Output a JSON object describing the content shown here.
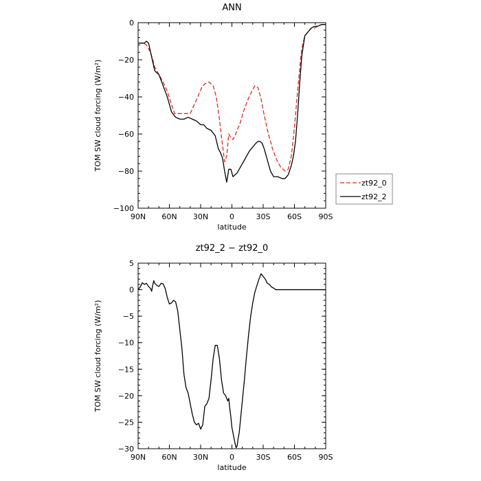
{
  "chart_data": [
    {
      "type": "line",
      "title": "ANN",
      "xlabel": "latitude",
      "ylabel": "TOM SW cloud forcing (W/m²)",
      "xlim": [
        90,
        -90
      ],
      "ylim": [
        -100,
        0
      ],
      "x_ticks": [
        90,
        60,
        30,
        0,
        -30,
        -60,
        -90
      ],
      "x_tick_labels": [
        "90N",
        "60N",
        "30N",
        "0",
        "30S",
        "60S",
        "90S"
      ],
      "y_ticks": [
        0,
        -20,
        -40,
        -60,
        -80,
        -100
      ],
      "y_tick_labels": [
        "0",
        "−20",
        "−40",
        "−60",
        "−80",
        "−100"
      ],
      "legend_position": "right",
      "series": [
        {
          "name": "zt92_0",
          "color": "#e0281e",
          "dash": "dashed",
          "x": [
            90,
            85,
            82,
            78,
            74,
            70,
            66,
            62,
            58,
            55,
            50,
            45,
            40,
            36,
            32,
            29,
            26,
            22,
            18,
            15,
            12,
            9,
            7,
            5,
            3,
            1,
            -1,
            -3,
            -5,
            -8,
            -11,
            -15,
            -19,
            -22,
            -25,
            -28,
            -31,
            -35,
            -39,
            -43,
            -47,
            -51,
            -54,
            -57,
            -59,
            -61,
            -63,
            -65,
            -67,
            -70,
            -73,
            -76,
            -79,
            -82,
            -86,
            -90
          ],
          "y": [
            -11,
            -11,
            -12,
            -16,
            -24,
            -28,
            -32,
            -37,
            -44,
            -49,
            -49,
            -49,
            -49,
            -44,
            -39,
            -35,
            -33,
            -32,
            -34,
            -40,
            -52,
            -66,
            -75,
            -72,
            -60,
            -62,
            -63,
            -61,
            -58,
            -54,
            -48,
            -42,
            -37,
            -34,
            -35,
            -41,
            -50,
            -60,
            -68,
            -74,
            -78,
            -80,
            -79,
            -72,
            -62,
            -50,
            -37,
            -25,
            -14,
            -7,
            -5,
            -3,
            -3,
            -2,
            -1,
            -1
          ]
        },
        {
          "name": "zt92_2",
          "color": "#000000",
          "dash": "solid",
          "x": [
            90,
            87,
            84,
            82,
            80,
            78,
            76,
            74,
            70,
            66,
            62,
            58,
            54,
            50,
            46,
            42,
            38,
            34,
            30,
            27,
            24,
            20,
            16,
            13,
            11,
            9,
            7,
            5,
            3,
            1,
            -1,
            -3,
            -5,
            -8,
            -11,
            -14,
            -17,
            -20,
            -23,
            -25,
            -27,
            -29,
            -31,
            -34,
            -37,
            -40,
            -44,
            -48,
            -51,
            -54,
            -57,
            -59,
            -61,
            -63,
            -65,
            -67,
            -70,
            -73,
            -76,
            -79,
            -82,
            -86,
            -90
          ],
          "y": [
            -11,
            -11,
            -11,
            -10,
            -11,
            -16,
            -21,
            -26,
            -28,
            -34,
            -40,
            -48,
            -51,
            -52,
            -52,
            -51,
            -52,
            -53,
            -55,
            -55,
            -57,
            -58,
            -61,
            -68,
            -70,
            -73,
            -80,
            -86,
            -79,
            -79,
            -83,
            -82,
            -81,
            -78,
            -75,
            -72,
            -69,
            -67,
            -65,
            -64,
            -64,
            -65,
            -68,
            -74,
            -80,
            -83,
            -83,
            -84,
            -84,
            -82,
            -77,
            -72,
            -64,
            -50,
            -33,
            -18,
            -7,
            -5,
            -3,
            -2,
            -2,
            -1,
            -1
          ]
        }
      ]
    },
    {
      "type": "line",
      "title": "zt92_2 − zt92_0",
      "xlabel": "latitude",
      "ylabel": "TOM SW cloud forcing (W/m²)",
      "xlim": [
        90,
        -90
      ],
      "ylim": [
        -30,
        5
      ],
      "x_ticks": [
        90,
        60,
        30,
        0,
        -30,
        -60,
        -90
      ],
      "x_tick_labels": [
        "90N",
        "60N",
        "30N",
        "0",
        "30S",
        "60S",
        "90S"
      ],
      "y_ticks": [
        5,
        0,
        -5,
        -10,
        -15,
        -20,
        -25,
        -30
      ],
      "y_tick_labels": [
        "5",
        "0",
        "−5",
        "−10",
        "−15",
        "−20",
        "−25",
        "−30"
      ],
      "series": [
        {
          "color": "#000000",
          "dash": "solid",
          "x": [
            90,
            88,
            86,
            84,
            82,
            80,
            78,
            77,
            76,
            75,
            74,
            72,
            70,
            68,
            66,
            64,
            62,
            60,
            58,
            56,
            54,
            52,
            50,
            48,
            46,
            44,
            42,
            40,
            38,
            36,
            34,
            32,
            30,
            28,
            26,
            24,
            22,
            20,
            18,
            16,
            14,
            12,
            10,
            8,
            6,
            5,
            4,
            3,
            2,
            1,
            0,
            -1,
            -2,
            -3,
            -4,
            -5,
            -6,
            -7,
            -8,
            -10,
            -12,
            -14,
            -16,
            -18,
            -20,
            -22,
            -24,
            -26,
            -28,
            -30,
            -32,
            -34,
            -36,
            -38,
            -40,
            -42,
            -44,
            -46,
            -48,
            -50,
            -52,
            -54,
            -56,
            -58,
            -60,
            -62,
            -64,
            -66,
            -68,
            -70,
            -72,
            -74,
            -76,
            -78,
            -80,
            -82,
            -84,
            -86,
            -88,
            -90
          ],
          "y": [
            0,
            0.5,
            1.3,
            1.0,
            1.2,
            0.6,
            0.2,
            -0.3,
            0.8,
            1.7,
            1.2,
            0.8,
            0.6,
            1.2,
            1.1,
            0.2,
            -1.5,
            -2.7,
            -2.5,
            -2.0,
            -2.3,
            -4.0,
            -7.5,
            -11.0,
            -16.0,
            -18.5,
            -19.5,
            -21.5,
            -23.5,
            -25.0,
            -25.5,
            -25.2,
            -26.3,
            -25.5,
            -22.0,
            -21.5,
            -20.5,
            -17.0,
            -13.0,
            -10.5,
            -10.5,
            -13.0,
            -17.0,
            -19.5,
            -20.0,
            -20.5,
            -21.0,
            -20.5,
            -22.5,
            -24.0,
            -26.0,
            -27.0,
            -28.0,
            -29.0,
            -29.8,
            -29.5,
            -28.0,
            -27.0,
            -25.0,
            -21.0,
            -17.0,
            -12.5,
            -8.5,
            -5.0,
            -2.5,
            -0.5,
            0.8,
            2.0,
            3.0,
            2.5,
            2.0,
            1.2,
            1.0,
            0.5,
            0.3,
            0.0,
            0.0,
            0.0,
            0.0,
            0.0,
            0.0,
            0.0,
            0.0,
            0.0,
            0.0,
            0.0,
            0.0,
            0.0,
            0.0,
            0.0,
            0.0,
            0.0,
            0.0,
            0.0,
            0.0,
            0.0,
            0.0,
            0.0,
            0.0,
            0.0
          ]
        }
      ]
    }
  ]
}
